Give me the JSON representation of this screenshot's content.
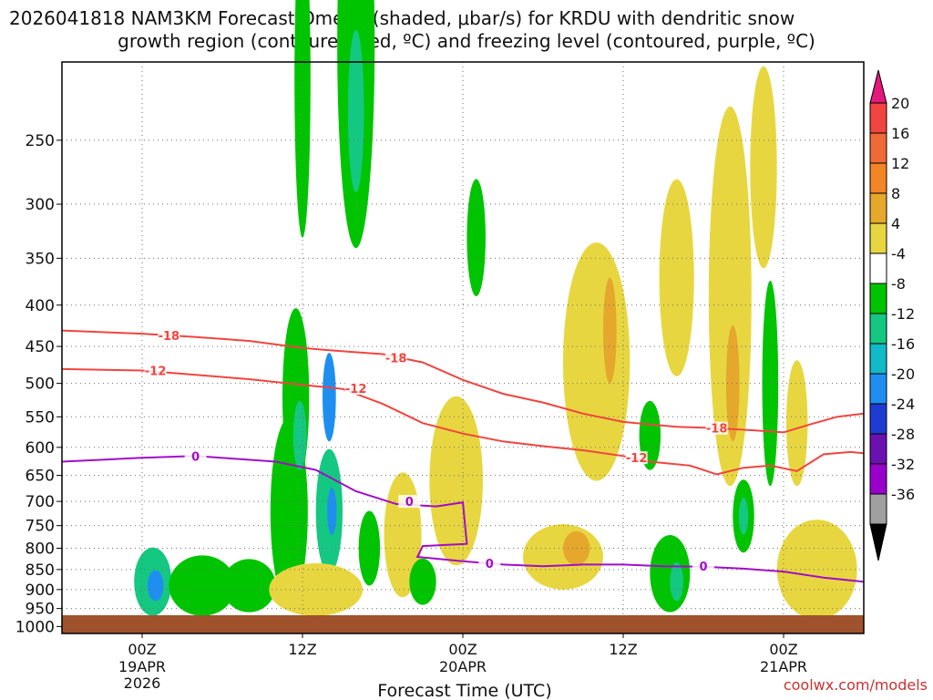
{
  "chart_data": {
    "type": "heatmap",
    "title_line1": "2026041818 NAM3KM Forecast Omega (shaded, μbar/s) for KRDU with dendritic snow",
    "title_line2": "growth region (contoured, red, ºC) and freezing level (contoured, purple, ºC)",
    "xlabel": "Forecast Time (UTC)",
    "credit": "coolwx.com/models",
    "x_ticks": [
      {
        "label": "00Z",
        "sub": [
          "19APR",
          "2026"
        ],
        "hour": 6
      },
      {
        "label": "12Z",
        "sub": [],
        "hour": 18
      },
      {
        "label": "00Z",
        "sub": [
          "20APR"
        ],
        "hour": 30
      },
      {
        "label": "12Z",
        "sub": [],
        "hour": 42
      },
      {
        "label": "00Z",
        "sub": [
          "21APR"
        ],
        "hour": 54
      }
    ],
    "xlim_hours": [
      0,
      60
    ],
    "y_ticks": [
      "250",
      "300",
      "350",
      "400",
      "450",
      "500",
      "550",
      "600",
      "650",
      "700",
      "750",
      "800",
      "850",
      "900",
      "950",
      "1000"
    ],
    "ylim_hPa": [
      200,
      1020
    ],
    "colorbar": {
      "labels": [
        "20",
        "16",
        "12",
        "8",
        "4",
        "-4",
        "-8",
        "-12",
        "-16",
        "-20",
        "-24",
        "-28",
        "-32",
        "-36"
      ],
      "colors": [
        "#e3197b",
        "#f04540",
        "#f06a37",
        "#f38526",
        "#e5a82c",
        "#e8d640",
        "#ffffff",
        "#00c400",
        "#14c882",
        "#12b9c8",
        "#1e8ff0",
        "#1f3cd2",
        "#6a11b0",
        "#9a00cc",
        "#a0a0a0",
        "#000000"
      ]
    },
    "contours": [
      {
        "name": "dgz-minus18",
        "label": "-18",
        "color": "#f04540",
        "points": [
          [
            0,
            430
          ],
          [
            6,
            434
          ],
          [
            10,
            438
          ],
          [
            14,
            443
          ],
          [
            18,
            452
          ],
          [
            20,
            455
          ],
          [
            24,
            460
          ],
          [
            27,
            471
          ],
          [
            30,
            495
          ],
          [
            33,
            515
          ],
          [
            36,
            528
          ],
          [
            39,
            545
          ],
          [
            42,
            558
          ],
          [
            44,
            562
          ],
          [
            46,
            566
          ],
          [
            49,
            568
          ],
          [
            52,
            572
          ],
          [
            54,
            575
          ],
          [
            56,
            562
          ],
          [
            58,
            550
          ],
          [
            60,
            545
          ]
        ]
      },
      {
        "name": "dgz-minus12",
        "label": "-12",
        "color": "#f04540",
        "points": [
          [
            0,
            480
          ],
          [
            6,
            482
          ],
          [
            10,
            488
          ],
          [
            14,
            494
          ],
          [
            18,
            502
          ],
          [
            21,
            508
          ],
          [
            24,
            530
          ],
          [
            27,
            560
          ],
          [
            30,
            577
          ],
          [
            33,
            590
          ],
          [
            36,
            598
          ],
          [
            39,
            605
          ],
          [
            42,
            615
          ],
          [
            44,
            625
          ],
          [
            47,
            632
          ],
          [
            49,
            648
          ],
          [
            51,
            636
          ],
          [
            53,
            632
          ],
          [
            55,
            642
          ],
          [
            57,
            612
          ],
          [
            59,
            608
          ],
          [
            60,
            610
          ]
        ]
      },
      {
        "name": "freezing-level-0",
        "label": "0",
        "color": "#a10ec8",
        "points": [
          [
            0,
            625
          ],
          [
            6,
            618
          ],
          [
            10,
            615
          ],
          [
            13,
            620
          ],
          [
            16,
            625
          ],
          [
            19,
            640
          ],
          [
            22,
            680
          ],
          [
            25,
            705
          ],
          [
            28,
            710
          ],
          [
            30,
            702
          ],
          [
            30.3,
            790
          ],
          [
            27,
            795
          ],
          [
            26.6,
            820
          ],
          [
            30,
            830
          ],
          [
            33,
            838
          ],
          [
            36,
            842
          ],
          [
            39,
            838
          ],
          [
            42,
            838
          ],
          [
            45,
            842
          ],
          [
            48,
            843
          ],
          [
            51,
            848
          ],
          [
            54,
            855
          ],
          [
            57,
            870
          ],
          [
            60,
            880
          ]
        ]
      }
    ],
    "contour_labels": [
      {
        "label": "-18",
        "hour": 8,
        "hPa": 436
      },
      {
        "label": "-18",
        "hour": 25,
        "hPa": 465
      },
      {
        "label": "-18",
        "hour": 49,
        "hPa": 568
      },
      {
        "label": "-12",
        "hour": 7,
        "hPa": 482
      },
      {
        "label": "-12",
        "hour": 22,
        "hPa": 507
      },
      {
        "label": "-12",
        "hour": 43,
        "hPa": 618
      },
      {
        "label": "0",
        "hour": 10,
        "hPa": 615
      },
      {
        "label": "0",
        "hour": 26,
        "hPa": 700
      },
      {
        "label": "0",
        "hour": 32,
        "hPa": 835
      },
      {
        "label": "0",
        "hour": 48,
        "hPa": 842
      }
    ],
    "omega_regions": [
      {
        "hour": 6.8,
        "hPa": 880,
        "dh": 1.4,
        "dp": 90,
        "level": -12
      },
      {
        "hour": 7.0,
        "hPa": 890,
        "dh": 0.6,
        "dp": 40,
        "level": -20
      },
      {
        "hour": 10.5,
        "hPa": 890,
        "dh": 2.5,
        "dp": 80,
        "level": -8
      },
      {
        "hour": 14.0,
        "hPa": 890,
        "dh": 2.0,
        "dp": 70,
        "level": -8
      },
      {
        "hour": 17.0,
        "hPa": 720,
        "dh": 1.4,
        "dp": 220,
        "level": -8
      },
      {
        "hour": 17.5,
        "hPa": 520,
        "dh": 1.0,
        "dp": 150,
        "level": -8
      },
      {
        "hour": 17.8,
        "hPa": 580,
        "dh": 0.5,
        "dp": 60,
        "level": -12
      },
      {
        "hour": 18.0,
        "hPa": 210,
        "dh": 0.6,
        "dp": 120,
        "level": -8
      },
      {
        "hour": 20.0,
        "hPa": 720,
        "dh": 1.0,
        "dp": 140,
        "level": -12
      },
      {
        "hour": 20.2,
        "hPa": 720,
        "dh": 0.35,
        "dp": 50,
        "level": -20
      },
      {
        "hour": 20.0,
        "hPa": 520,
        "dh": 0.5,
        "dp": 70,
        "level": -20
      },
      {
        "hour": 22.0,
        "hPa": 190,
        "dh": 1.4,
        "dp": 150,
        "level": -8
      },
      {
        "hour": 22.0,
        "hPa": 230,
        "dh": 0.6,
        "dp": 60,
        "level": -12
      },
      {
        "hour": 23.0,
        "hPa": 800,
        "dh": 0.8,
        "dp": 90,
        "level": -8
      },
      {
        "hour": 19.0,
        "hPa": 900,
        "dh": 3.5,
        "dp": 70,
        "level": 4
      },
      {
        "hour": 25.5,
        "hPa": 770,
        "dh": 1.4,
        "dp": 150,
        "level": 4
      },
      {
        "hour": 27.0,
        "hPa": 880,
        "dh": 1.0,
        "dp": 60,
        "level": -8
      },
      {
        "hour": 29.5,
        "hPa": 660,
        "dh": 2.0,
        "dp": 180,
        "level": 4
      },
      {
        "hour": 31.0,
        "hPa": 330,
        "dh": 0.7,
        "dp": 60,
        "level": -8
      },
      {
        "hour": 37.5,
        "hPa": 820,
        "dh": 3.0,
        "dp": 80,
        "level": 4
      },
      {
        "hour": 38.5,
        "hPa": 800,
        "dh": 1.0,
        "dp": 40,
        "level": 8
      },
      {
        "hour": 40.0,
        "hPa": 470,
        "dh": 2.5,
        "dp": 190,
        "level": 4
      },
      {
        "hour": 41.0,
        "hPa": 430,
        "dh": 0.5,
        "dp": 70,
        "level": 8
      },
      {
        "hour": 44.0,
        "hPa": 580,
        "dh": 0.8,
        "dp": 60,
        "level": -8
      },
      {
        "hour": 45.5,
        "hPa": 860,
        "dh": 1.5,
        "dp": 100,
        "level": -8
      },
      {
        "hour": 46.0,
        "hPa": 880,
        "dh": 0.5,
        "dp": 50,
        "level": -12
      },
      {
        "hour": 46.0,
        "hPa": 370,
        "dh": 1.3,
        "dp": 120,
        "level": 4
      },
      {
        "hour": 50.0,
        "hPa": 390,
        "dh": 1.6,
        "dp": 280,
        "level": 4
      },
      {
        "hour": 50.2,
        "hPa": 500,
        "dh": 0.5,
        "dp": 90,
        "level": 8
      },
      {
        "hour": 51.0,
        "hPa": 730,
        "dh": 0.8,
        "dp": 80,
        "level": -8
      },
      {
        "hour": 51.0,
        "hPa": 730,
        "dh": 0.35,
        "dp": 40,
        "level": -12
      },
      {
        "hour": 52.5,
        "hPa": 270,
        "dh": 1.0,
        "dp": 90,
        "level": 4
      },
      {
        "hour": 53.0,
        "hPa": 500,
        "dh": 0.6,
        "dp": 170,
        "level": -8
      },
      {
        "hour": 55.0,
        "hPa": 560,
        "dh": 0.8,
        "dp": 110,
        "level": 4
      },
      {
        "hour": 56.5,
        "hPa": 850,
        "dh": 3.0,
        "dp": 130,
        "level": 4
      }
    ]
  }
}
